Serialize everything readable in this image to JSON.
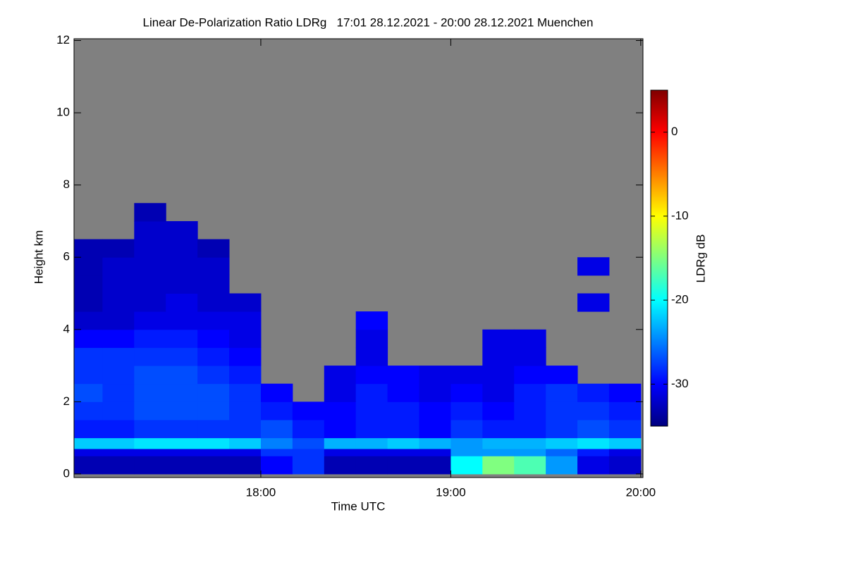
{
  "chart_data": {
    "type": "heatmap",
    "title": "Linear De-Polarization Ratio LDRg   17:01 28.12.2021 - 20:00 28.12.2021 Muenchen",
    "xlabel": "Time UTC",
    "ylabel": "Height km",
    "colorbar_label": "LDRg dB",
    "x_edges": [
      1,
      10,
      20,
      30,
      40,
      50,
      60,
      70,
      80,
      90,
      100,
      110,
      120,
      130,
      140,
      150,
      160,
      170,
      180
    ],
    "y_edges": [
      0,
      0.5,
      0.7,
      1.0,
      1.5,
      2,
      2.5,
      3,
      3.5,
      4,
      4.5,
      5,
      5.5,
      6,
      6.5,
      7,
      7.5
    ],
    "z": [
      [
        -33,
        -33,
        -33,
        -33,
        -33,
        -33,
        -30,
        -28,
        -33,
        -33,
        -33,
        -33,
        -20,
        -15,
        -17,
        -24,
        -31,
        -32
      ],
      [
        -31,
        -31,
        -31,
        -31,
        -31,
        -31,
        -28,
        -28,
        -31,
        -31,
        -31,
        -31,
        -24,
        -24,
        -24,
        -26,
        -29,
        -31
      ],
      [
        -22,
        -22,
        -21,
        -21,
        -21,
        -22,
        -25,
        -27,
        -23,
        -23,
        -22,
        -23,
        -24,
        -23,
        -23,
        -22,
        -21,
        -22
      ],
      [
        -29,
        -29,
        -28,
        -28,
        -28,
        -28,
        -27,
        -29,
        -30,
        -29,
        -29,
        -30,
        -28,
        -29,
        -29,
        -28,
        -27,
        -28
      ],
      [
        -28,
        -28,
        -27,
        -27,
        -27,
        -28,
        -29,
        -30,
        -30,
        -29,
        -29,
        -30,
        -29,
        -30,
        -29,
        -28,
        -28,
        -29
      ],
      [
        -27,
        -28,
        -27,
        -27,
        -27,
        -28,
        -30,
        null,
        -31,
        -29,
        -30,
        -31,
        -30,
        -31,
        -29,
        -28,
        -29,
        -30
      ],
      [
        -28,
        -28,
        -27,
        -27,
        -28,
        -29,
        null,
        null,
        -31,
        -30,
        -30,
        -31,
        -31,
        -31,
        -30,
        -30,
        null,
        null
      ],
      [
        -28,
        -28,
        -28,
        -28,
        -29,
        -30,
        null,
        null,
        null,
        -31,
        null,
        null,
        null,
        -31,
        -31,
        null,
        null,
        null
      ],
      [
        -30,
        -30,
        -29,
        -29,
        -30,
        -31,
        null,
        null,
        null,
        -31,
        null,
        null,
        null,
        -31,
        -31,
        null,
        null,
        null
      ],
      [
        -32,
        -32,
        -31,
        -31,
        -31,
        -31,
        null,
        null,
        null,
        -30,
        null,
        null,
        null,
        null,
        null,
        null,
        null,
        null
      ],
      [
        -33,
        -32,
        -32,
        -31,
        -32,
        -32,
        null,
        null,
        null,
        null,
        null,
        null,
        null,
        null,
        null,
        null,
        -31,
        null
      ],
      [
        -33,
        -32,
        -32,
        -32,
        -32,
        null,
        null,
        null,
        null,
        null,
        null,
        null,
        null,
        null,
        null,
        null,
        null,
        null
      ],
      [
        -33,
        -32,
        -32,
        -32,
        -32,
        null,
        null,
        null,
        null,
        null,
        null,
        null,
        null,
        null,
        null,
        null,
        -31,
        null
      ],
      [
        -33,
        -33,
        -32,
        -32,
        -33,
        null,
        null,
        null,
        null,
        null,
        null,
        null,
        null,
        null,
        null,
        null,
        null,
        null
      ],
      [
        null,
        null,
        -32,
        -32,
        null,
        null,
        null,
        null,
        null,
        null,
        null,
        null,
        null,
        null,
        null,
        null,
        null,
        null
      ],
      [
        null,
        null,
        -33,
        null,
        null,
        null,
        null,
        null,
        null,
        null,
        null,
        null,
        null,
        null,
        null,
        null,
        null,
        null
      ]
    ],
    "xlim": [
      1,
      180.7
    ],
    "xticks": [
      {
        "value": 60,
        "label": "18:00"
      },
      {
        "value": 120,
        "label": "19:00"
      },
      {
        "value": 180,
        "label": "20:00"
      }
    ],
    "ylim": [
      -0.1,
      12.05
    ],
    "yticks": [
      0,
      2,
      4,
      6,
      8,
      10,
      12
    ],
    "zlim": [
      -35,
      5
    ],
    "cbar_ticks": [
      0,
      -10,
      -20,
      -30
    ],
    "colormap": "jet",
    "missing_color": "#808080"
  }
}
